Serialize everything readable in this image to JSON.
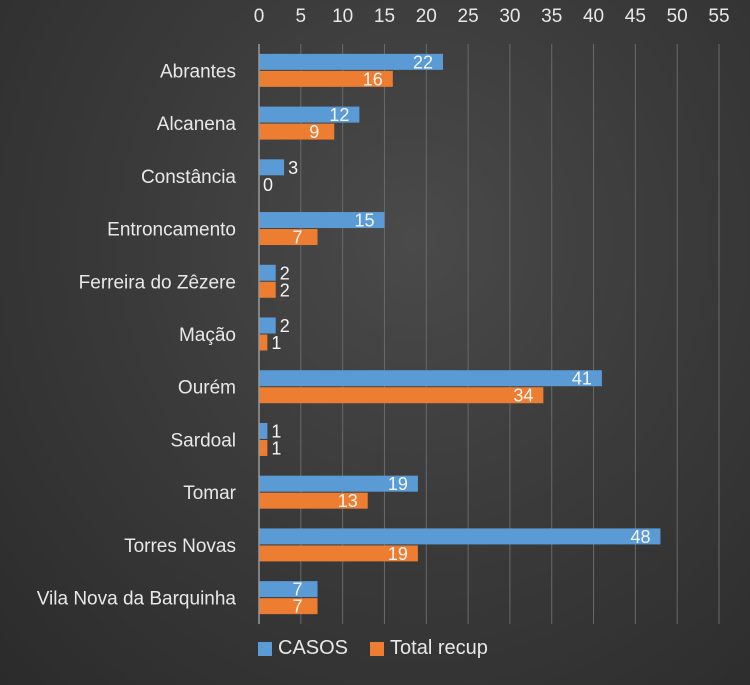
{
  "chart_data": {
    "type": "bar",
    "orientation": "horizontal",
    "categories": [
      "Abrantes",
      "Alcanena",
      "Constância",
      "Entroncamento",
      "Ferreira do Zêzere",
      "Mação",
      "Ourém",
      "Sardoal",
      "Tomar",
      "Torres Novas",
      "Vila Nova da Barquinha"
    ],
    "series": [
      {
        "name": "CASOS",
        "color": "#5b9bd5",
        "values": [
          22,
          12,
          3,
          15,
          2,
          2,
          41,
          1,
          19,
          48,
          7
        ]
      },
      {
        "name": "Total recup",
        "color": "#ed7d31",
        "values": [
          16,
          9,
          0,
          7,
          2,
          1,
          34,
          1,
          13,
          19,
          7
        ]
      }
    ],
    "xlim": [
      0,
      55
    ],
    "xticks": [
      "0",
      "5",
      "10",
      "15",
      "20",
      "25",
      "30",
      "35",
      "40",
      "45",
      "50",
      "55"
    ],
    "grid": true,
    "legend_position": "bottom"
  }
}
